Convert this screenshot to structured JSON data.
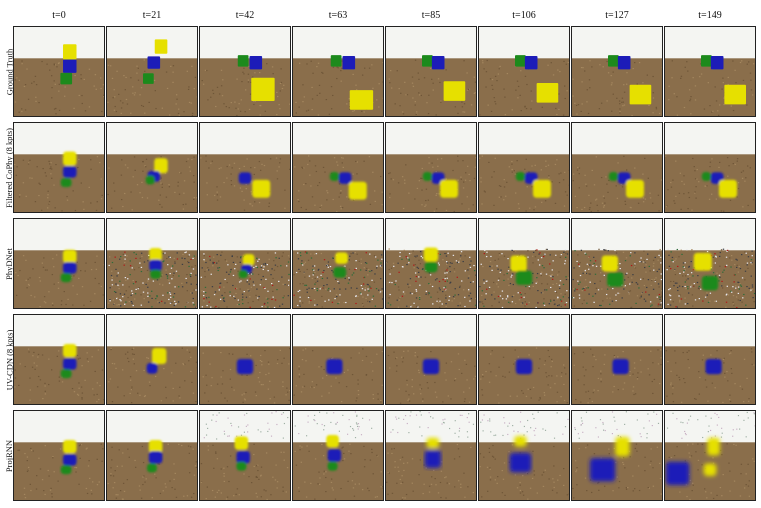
{
  "timesteps": [
    "t=0",
    "t=21",
    "t=42",
    "t=63",
    "t=85",
    "t=106",
    "t=127",
    "t=149"
  ],
  "methods": [
    {
      "label": "Ground Truth",
      "style": "sharp"
    },
    {
      "label": "Filtered CoPhy (8 kpts)",
      "style": "soft"
    },
    {
      "label": "PhyDNet",
      "style": "noisy"
    },
    {
      "label": "UV-CDN (8 kpts)",
      "style": "soft"
    },
    {
      "label": "ProjRNN",
      "style": "blur"
    }
  ],
  "colors": {
    "sky": "#f4f5f2",
    "ground": "#8a6e4b",
    "ground_dark": "#6f5638",
    "yellow": "#e6e000",
    "blue": "#1a1fb8",
    "green": "#1e8a1e",
    "frame_border": "#222222"
  },
  "frames": [
    [
      {
        "blocks": [
          [
            "yellow",
            0.62,
            0.28,
            0.15,
            0.17
          ],
          [
            "blue",
            0.62,
            0.44,
            0.15,
            0.15
          ],
          [
            "green",
            0.58,
            0.58,
            0.13,
            0.13
          ]
        ]
      },
      {
        "blocks": [
          [
            "yellow",
            0.6,
            0.22,
            0.14,
            0.16
          ],
          [
            "blue",
            0.52,
            0.4,
            0.14,
            0.14
          ],
          [
            "green",
            0.46,
            0.58,
            0.12,
            0.12
          ]
        ]
      },
      {
        "blocks": [
          [
            "green",
            0.48,
            0.38,
            0.12,
            0.13
          ],
          [
            "blue",
            0.62,
            0.4,
            0.14,
            0.15
          ],
          [
            "yellow",
            0.7,
            0.7,
            0.26,
            0.26
          ]
        ]
      },
      {
        "blocks": [
          [
            "green",
            0.48,
            0.38,
            0.12,
            0.13
          ],
          [
            "blue",
            0.62,
            0.4,
            0.14,
            0.15
          ],
          [
            "yellow",
            0.76,
            0.82,
            0.26,
            0.22
          ]
        ]
      },
      {
        "blocks": [
          [
            "green",
            0.46,
            0.38,
            0.12,
            0.13
          ],
          [
            "blue",
            0.58,
            0.4,
            0.14,
            0.15
          ],
          [
            "yellow",
            0.76,
            0.72,
            0.24,
            0.22
          ]
        ]
      },
      {
        "blocks": [
          [
            "green",
            0.46,
            0.38,
            0.12,
            0.13
          ],
          [
            "blue",
            0.58,
            0.4,
            0.14,
            0.15
          ],
          [
            "yellow",
            0.76,
            0.74,
            0.24,
            0.22
          ]
        ]
      },
      {
        "blocks": [
          [
            "green",
            0.46,
            0.38,
            0.12,
            0.13
          ],
          [
            "blue",
            0.58,
            0.4,
            0.14,
            0.15
          ],
          [
            "yellow",
            0.76,
            0.76,
            0.24,
            0.22
          ]
        ]
      },
      {
        "blocks": [
          [
            "green",
            0.46,
            0.38,
            0.12,
            0.13
          ],
          [
            "blue",
            0.58,
            0.4,
            0.14,
            0.15
          ],
          [
            "yellow",
            0.78,
            0.76,
            0.24,
            0.22
          ]
        ]
      }
    ],
    [
      {
        "blocks": [
          [
            "yellow",
            0.62,
            0.4,
            0.15,
            0.16
          ],
          [
            "blue",
            0.62,
            0.55,
            0.15,
            0.13
          ],
          [
            "green",
            0.58,
            0.67,
            0.12,
            0.1
          ]
        ]
      },
      {
        "blocks": [
          [
            "yellow",
            0.6,
            0.48,
            0.15,
            0.17
          ],
          [
            "blue",
            0.52,
            0.6,
            0.14,
            0.12
          ],
          [
            "green",
            0.48,
            0.64,
            0.1,
            0.1
          ]
        ]
      },
      {
        "blocks": [
          [
            "blue",
            0.5,
            0.62,
            0.14,
            0.13
          ],
          [
            "yellow",
            0.68,
            0.74,
            0.2,
            0.2
          ]
        ]
      },
      {
        "blocks": [
          [
            "green",
            0.46,
            0.6,
            0.1,
            0.1
          ],
          [
            "blue",
            0.58,
            0.62,
            0.14,
            0.13
          ],
          [
            "yellow",
            0.72,
            0.76,
            0.2,
            0.2
          ]
        ]
      },
      {
        "blocks": [
          [
            "green",
            0.46,
            0.6,
            0.1,
            0.1
          ],
          [
            "blue",
            0.58,
            0.62,
            0.14,
            0.13
          ],
          [
            "yellow",
            0.7,
            0.74,
            0.2,
            0.2
          ]
        ]
      },
      {
        "blocks": [
          [
            "green",
            0.46,
            0.6,
            0.1,
            0.1
          ],
          [
            "blue",
            0.58,
            0.62,
            0.14,
            0.13
          ],
          [
            "yellow",
            0.7,
            0.74,
            0.2,
            0.2
          ]
        ]
      },
      {
        "blocks": [
          [
            "green",
            0.46,
            0.6,
            0.1,
            0.1
          ],
          [
            "blue",
            0.58,
            0.62,
            0.14,
            0.13
          ],
          [
            "yellow",
            0.7,
            0.74,
            0.2,
            0.2
          ]
        ]
      },
      {
        "blocks": [
          [
            "green",
            0.46,
            0.6,
            0.1,
            0.1
          ],
          [
            "blue",
            0.58,
            0.62,
            0.14,
            0.13
          ],
          [
            "yellow",
            0.7,
            0.74,
            0.2,
            0.2
          ]
        ]
      }
    ],
    [
      {
        "blocks": [
          [
            "yellow",
            0.62,
            0.42,
            0.15,
            0.15
          ],
          [
            "blue",
            0.62,
            0.55,
            0.15,
            0.13
          ],
          [
            "green",
            0.58,
            0.66,
            0.12,
            0.1
          ]
        ]
      },
      {
        "blocks": [
          [
            "yellow",
            0.54,
            0.4,
            0.14,
            0.15
          ],
          [
            "blue",
            0.54,
            0.52,
            0.14,
            0.13
          ],
          [
            "green",
            0.54,
            0.62,
            0.12,
            0.1
          ]
        ]
      },
      {
        "blocks": [
          [
            "yellow",
            0.54,
            0.46,
            0.13,
            0.13
          ],
          [
            "blue",
            0.52,
            0.56,
            0.12,
            0.1
          ],
          [
            "green",
            0.48,
            0.62,
            0.1,
            0.09
          ]
        ]
      },
      {
        "blocks": [
          [
            "yellow",
            0.54,
            0.44,
            0.14,
            0.13
          ],
          [
            "green",
            0.52,
            0.6,
            0.14,
            0.12
          ]
        ]
      },
      {
        "blocks": [
          [
            "yellow",
            0.5,
            0.4,
            0.16,
            0.16
          ],
          [
            "green",
            0.5,
            0.54,
            0.14,
            0.12
          ]
        ]
      },
      {
        "blocks": [
          [
            "yellow",
            0.44,
            0.5,
            0.18,
            0.18
          ],
          [
            "green",
            0.5,
            0.66,
            0.18,
            0.16
          ]
        ]
      },
      {
        "blocks": [
          [
            "yellow",
            0.42,
            0.5,
            0.18,
            0.18
          ],
          [
            "green",
            0.48,
            0.68,
            0.18,
            0.16
          ]
        ]
      },
      {
        "blocks": [
          [
            "yellow",
            0.42,
            0.48,
            0.2,
            0.2
          ],
          [
            "green",
            0.5,
            0.72,
            0.18,
            0.16
          ]
        ]
      }
    ],
    [
      {
        "blocks": [
          [
            "yellow",
            0.62,
            0.4,
            0.15,
            0.15
          ],
          [
            "blue",
            0.62,
            0.55,
            0.15,
            0.13
          ],
          [
            "green",
            0.58,
            0.66,
            0.12,
            0.1
          ]
        ]
      },
      {
        "blocks": [
          [
            "yellow",
            0.58,
            0.46,
            0.16,
            0.18
          ],
          [
            "blue",
            0.5,
            0.6,
            0.12,
            0.12
          ]
        ]
      },
      {
        "blocks": [
          [
            "blue",
            0.5,
            0.58,
            0.18,
            0.17
          ]
        ]
      },
      {
        "blocks": [
          [
            "blue",
            0.46,
            0.58,
            0.18,
            0.17
          ]
        ]
      },
      {
        "blocks": [
          [
            "blue",
            0.5,
            0.58,
            0.18,
            0.17
          ]
        ]
      },
      {
        "blocks": [
          [
            "blue",
            0.5,
            0.58,
            0.18,
            0.17
          ]
        ]
      },
      {
        "blocks": [
          [
            "blue",
            0.54,
            0.58,
            0.18,
            0.17
          ]
        ]
      },
      {
        "blocks": [
          [
            "blue",
            0.54,
            0.58,
            0.18,
            0.17
          ]
        ]
      }
    ],
    [
      {
        "blocks": [
          [
            "yellow",
            0.62,
            0.4,
            0.15,
            0.15
          ],
          [
            "blue",
            0.62,
            0.55,
            0.15,
            0.13
          ],
          [
            "green",
            0.58,
            0.66,
            0.12,
            0.1
          ]
        ]
      },
      {
        "blocks": [
          [
            "yellow",
            0.54,
            0.4,
            0.15,
            0.15
          ],
          [
            "blue",
            0.54,
            0.52,
            0.15,
            0.14
          ],
          [
            "green",
            0.5,
            0.64,
            0.11,
            0.1
          ]
        ]
      },
      {
        "blocks": [
          [
            "yellow",
            0.46,
            0.36,
            0.15,
            0.15
          ],
          [
            "blue",
            0.48,
            0.52,
            0.15,
            0.14
          ],
          [
            "green",
            0.46,
            0.62,
            0.11,
            0.1
          ]
        ]
      },
      {
        "blocks": [
          [
            "yellow",
            0.44,
            0.34,
            0.14,
            0.14
          ],
          [
            "blue",
            0.46,
            0.5,
            0.15,
            0.14
          ],
          [
            "green",
            0.44,
            0.62,
            0.11,
            0.1
          ]
        ]
      },
      {
        "blocks": [
          [
            "yellow",
            0.52,
            0.36,
            0.14,
            0.12
          ],
          [
            "blue",
            0.52,
            0.54,
            0.18,
            0.2
          ]
        ]
      },
      {
        "blocks": [
          [
            "yellow",
            0.46,
            0.34,
            0.14,
            0.12
          ],
          [
            "blue",
            0.46,
            0.58,
            0.24,
            0.22
          ]
        ]
      },
      {
        "blocks": [
          [
            "yellow",
            0.56,
            0.4,
            0.16,
            0.22
          ],
          [
            "blue",
            0.34,
            0.66,
            0.28,
            0.26
          ]
        ]
      },
      {
        "blocks": [
          [
            "yellow",
            0.54,
            0.4,
            0.14,
            0.2
          ],
          [
            "yellow",
            0.5,
            0.66,
            0.14,
            0.14
          ],
          [
            "blue",
            0.14,
            0.7,
            0.26,
            0.26
          ]
        ]
      }
    ]
  ]
}
